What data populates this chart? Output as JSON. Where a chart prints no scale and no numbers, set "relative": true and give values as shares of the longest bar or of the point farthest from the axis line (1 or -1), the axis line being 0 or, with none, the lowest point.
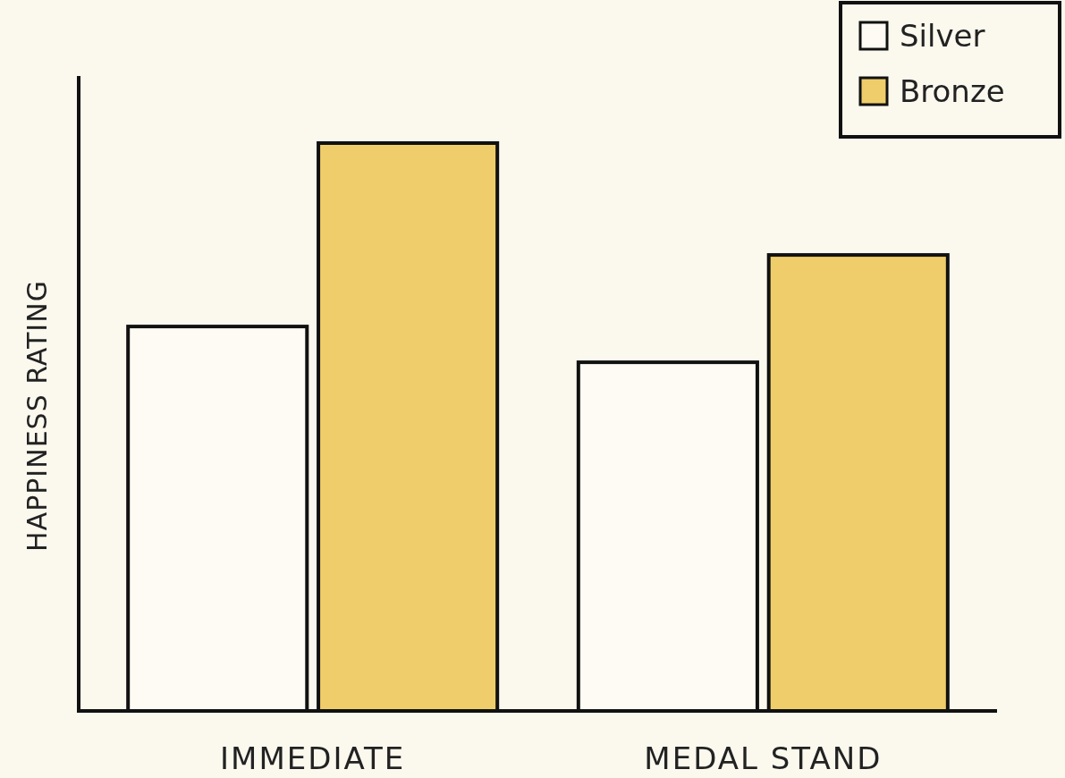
{
  "chart_data": {
    "type": "bar",
    "ylabel": "HAPPINESS RATING",
    "categories": [
      "IMMEDIATE",
      "MEDAL STAND"
    ],
    "relative": true,
    "legend": "top right",
    "series": [
      {
        "name": "Silver",
        "color": "#fdfbf3",
        "values": [
          0.677,
          0.614
        ]
      },
      {
        "name": "Bronze",
        "color": "#efcd6a",
        "values": [
          1,
          0.803
        ]
      }
    ]
  }
}
